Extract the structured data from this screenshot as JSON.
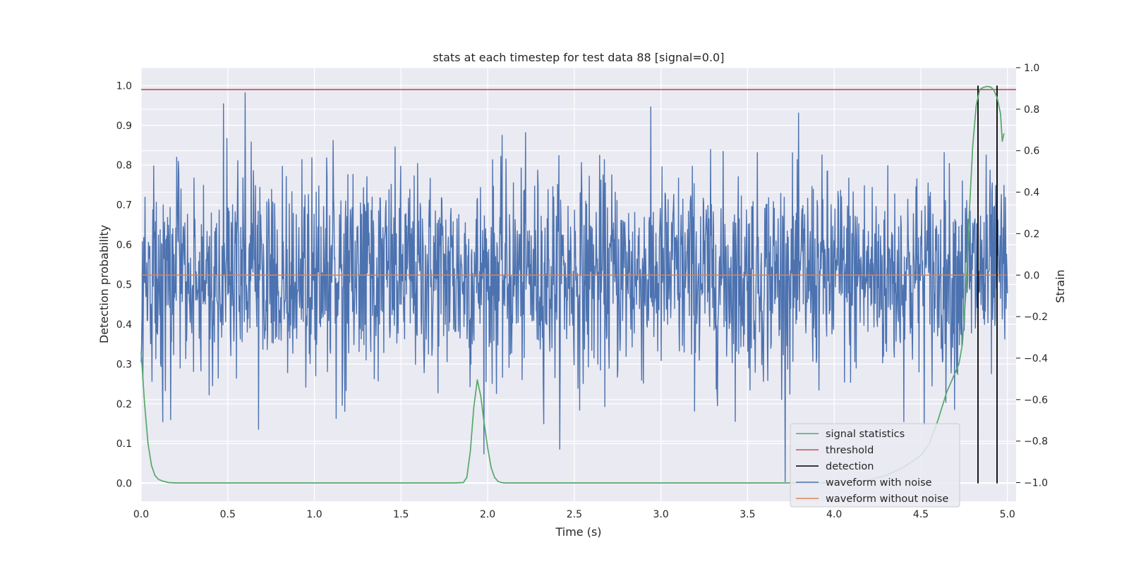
{
  "chart_data": {
    "type": "line",
    "title": "stats at each timestep for test data 88 [signal=0.0]",
    "xlabel": "Time (s)",
    "ylabel": "Detection probability",
    "y2label": "Strain",
    "xlim": [
      0.0,
      5.05
    ],
    "ylim": [
      -0.045,
      1.045
    ],
    "y2lim": [
      -1.09,
      1.0
    ],
    "xticks": [
      "0.0",
      "0.5",
      "1.0",
      "1.5",
      "2.0",
      "2.5",
      "3.0",
      "3.5",
      "4.0",
      "4.5",
      "5.0"
    ],
    "yticks": [
      "0.0",
      "0.1",
      "0.2",
      "0.3",
      "0.4",
      "0.5",
      "0.6",
      "0.7",
      "0.8",
      "0.9",
      "1.0"
    ],
    "y2ticks": [
      "−1.0",
      "−0.8",
      "−0.6",
      "−0.4",
      "−0.2",
      "0.0",
      "0.2",
      "0.4",
      "0.6",
      "0.8",
      "1.0"
    ],
    "grid": true,
    "legend_position": "lower-right",
    "legend": [
      {
        "label": "signal statistics",
        "color": "#55a868"
      },
      {
        "label": "threshold",
        "color": "#c44e52"
      },
      {
        "label": "detection",
        "color": "#000000"
      },
      {
        "label": "waveform with noise",
        "color": "#4c72b0"
      },
      {
        "label": "waveform without noise",
        "color": "#dd8452"
      }
    ],
    "threshold": 0.99,
    "detections": [
      4.83,
      4.94
    ],
    "signal_statistics": {
      "color": "#55a868",
      "x": [
        0.0,
        0.02,
        0.04,
        0.06,
        0.08,
        0.1,
        0.13,
        0.16,
        0.2,
        0.3,
        0.5,
        1.0,
        1.5,
        1.8,
        1.86,
        1.88,
        1.9,
        1.92,
        1.94,
        1.96,
        1.98,
        2.0,
        2.02,
        2.04,
        2.06,
        2.08,
        2.1,
        2.2,
        2.5,
        3.0,
        3.5,
        3.8,
        4.0,
        4.1,
        4.2,
        4.3,
        4.4,
        4.5,
        4.55,
        4.6,
        4.65,
        4.7,
        4.72,
        4.74,
        4.76,
        4.78,
        4.8,
        4.82,
        4.84,
        4.86,
        4.88,
        4.9,
        4.92,
        4.94,
        4.96,
        4.97,
        4.98
      ],
      "y": [
        0.33,
        0.2,
        0.1,
        0.045,
        0.02,
        0.01,
        0.005,
        0.002,
        0.001,
        0.001,
        0.001,
        0.001,
        0.001,
        0.001,
        0.002,
        0.015,
        0.08,
        0.19,
        0.26,
        0.22,
        0.15,
        0.09,
        0.04,
        0.015,
        0.005,
        0.002,
        0.001,
        0.001,
        0.001,
        0.001,
        0.001,
        0.001,
        0.001,
        0.003,
        0.008,
        0.02,
        0.04,
        0.07,
        0.1,
        0.16,
        0.23,
        0.28,
        0.3,
        0.35,
        0.48,
        0.68,
        0.85,
        0.95,
        0.99,
        0.995,
        0.998,
        0.997,
        0.99,
        0.97,
        0.93,
        0.86,
        0.88
      ]
    },
    "waveform_with_noise": {
      "color": "#4c72b0",
      "samples": 2000,
      "range": [
        -1.0,
        0.93
      ],
      "typical_amplitude": 0.45,
      "x_range": [
        0.0,
        5.0
      ]
    },
    "waveform_without_noise": {
      "color": "#dd8452",
      "value": 0.0
    }
  }
}
